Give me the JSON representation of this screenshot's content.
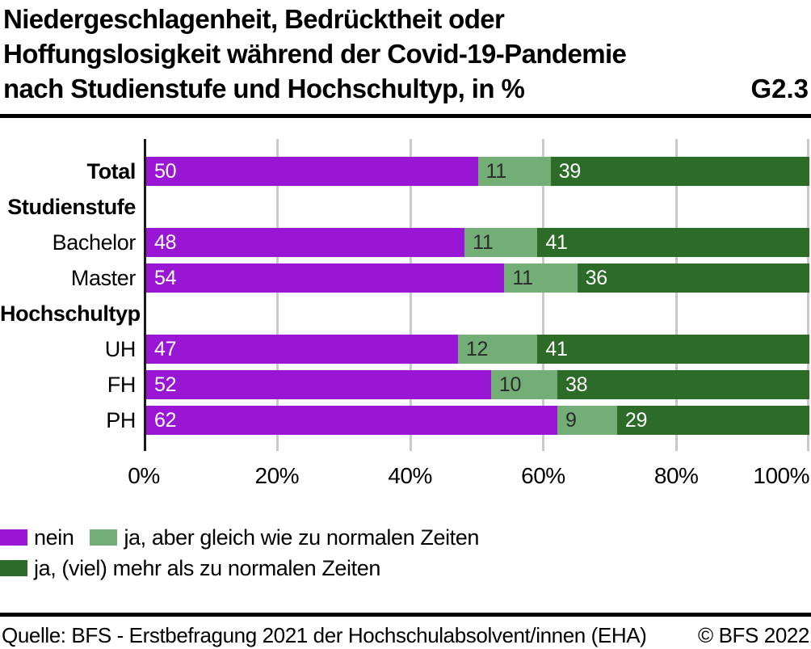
{
  "header": {
    "title_lines": [
      "Niedergeschlagenheit, Bedrücktheit oder",
      "Hoffungslosigkeit während der Covid-19-Pandemie",
      "nach Studienstufe und Hochschultyp, in %"
    ],
    "graph_id": "G2.3"
  },
  "chart_data": {
    "type": "bar",
    "variant": "stacked-horizontal",
    "unit": "%",
    "xlim": [
      0,
      100
    ],
    "grid": true,
    "grid_color": "#c9c9c9",
    "axis_color": "#1a1a1a",
    "x_ticks": [
      {
        "pct": 0,
        "label": "0%"
      },
      {
        "pct": 20,
        "label": "20%"
      },
      {
        "pct": 40,
        "label": "40%"
      },
      {
        "pct": 60,
        "label": "60%"
      },
      {
        "pct": 80,
        "label": "80%"
      },
      {
        "pct": 100,
        "label": "100%"
      }
    ],
    "series": [
      {
        "name": "nein",
        "color": "#9816d4",
        "value_text_color": "#ffffff"
      },
      {
        "name": "ja, aber gleich wie zu normalen Zeiten",
        "color": "#74ae77",
        "value_text_color": "#2b2b2b"
      },
      {
        "name": "ja, (viel) mehr als zu normalen Zeiten",
        "color": "#2c6b28",
        "value_text_color": "#ffffff"
      }
    ],
    "rows": [
      {
        "label": "Total",
        "bold": true,
        "header": false,
        "values": [
          50,
          11,
          39
        ]
      },
      {
        "label": "Studienstufe",
        "bold": true,
        "header": true,
        "values": null
      },
      {
        "label": "Bachelor",
        "bold": false,
        "header": false,
        "values": [
          48,
          11,
          41
        ]
      },
      {
        "label": "Master",
        "bold": false,
        "header": false,
        "values": [
          54,
          11,
          36
        ]
      },
      {
        "label": "Hochschultyp",
        "bold": true,
        "header": true,
        "values": null
      },
      {
        "label": "UH",
        "bold": false,
        "header": false,
        "values": [
          47,
          12,
          41
        ]
      },
      {
        "label": "FH",
        "bold": false,
        "header": false,
        "values": [
          52,
          10,
          38
        ]
      },
      {
        "label": "PH",
        "bold": false,
        "header": false,
        "values": [
          62,
          9,
          29
        ]
      }
    ],
    "legend_rows": [
      [
        0,
        1
      ],
      [
        2
      ]
    ]
  },
  "footer": {
    "source": "Quelle: BFS - Erstbefragung 2021 der Hochschulabsolvent/innen (EHA)",
    "copyright": "© BFS 2022"
  },
  "layout_hints": {
    "legend_position": "bottom-left",
    "value_labels": "inside-left"
  }
}
